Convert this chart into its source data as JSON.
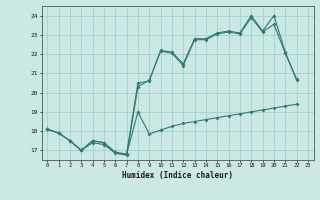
{
  "title": "",
  "xlabel": "Humidex (Indice chaleur)",
  "bg_color": "#cce8e4",
  "grid_color": "#99cccc",
  "line_color": "#2e7d6e",
  "xlim": [
    -0.5,
    23.5
  ],
  "ylim": [
    16.5,
    24.5
  ],
  "xticks": [
    0,
    1,
    2,
    3,
    4,
    5,
    6,
    7,
    8,
    9,
    10,
    11,
    12,
    13,
    14,
    15,
    16,
    17,
    18,
    19,
    20,
    21,
    22,
    23
  ],
  "yticks": [
    17,
    18,
    19,
    20,
    21,
    22,
    23,
    24
  ],
  "curve1_x": [
    0,
    1,
    2,
    3,
    4,
    5,
    6,
    7,
    8,
    9,
    10,
    11,
    12,
    13,
    14,
    15,
    16,
    17,
    18,
    19,
    20,
    21,
    22
  ],
  "curve1_y": [
    18.1,
    17.9,
    17.5,
    17.0,
    17.5,
    17.4,
    16.9,
    16.8,
    20.5,
    20.6,
    22.2,
    22.1,
    21.5,
    22.8,
    22.8,
    23.1,
    23.2,
    23.1,
    24.0,
    23.2,
    24.0,
    22.1,
    20.7
  ],
  "curve2_x": [
    0,
    1,
    2,
    3,
    4,
    5,
    6,
    7,
    8,
    9,
    10,
    11,
    12,
    13,
    14,
    15,
    16,
    17,
    18,
    19,
    20,
    21,
    22
  ],
  "curve2_y": [
    18.1,
    17.9,
    17.5,
    17.0,
    17.4,
    17.3,
    16.85,
    16.75,
    20.3,
    20.65,
    22.15,
    22.05,
    21.4,
    22.75,
    22.75,
    23.05,
    23.15,
    23.05,
    23.9,
    23.15,
    23.55,
    22.05,
    20.65
  ],
  "curve3_x": [
    0,
    1,
    2,
    3,
    4,
    5,
    6,
    7,
    8,
    9,
    10,
    11,
    12,
    13,
    14,
    15,
    16,
    17,
    18,
    19,
    20,
    21,
    22
  ],
  "curve3_y": [
    18.1,
    17.9,
    17.5,
    17.0,
    17.5,
    17.4,
    16.9,
    16.8,
    19.0,
    17.85,
    18.05,
    18.25,
    18.4,
    18.5,
    18.6,
    18.7,
    18.8,
    18.9,
    19.0,
    19.1,
    19.2,
    19.3,
    19.4
  ]
}
